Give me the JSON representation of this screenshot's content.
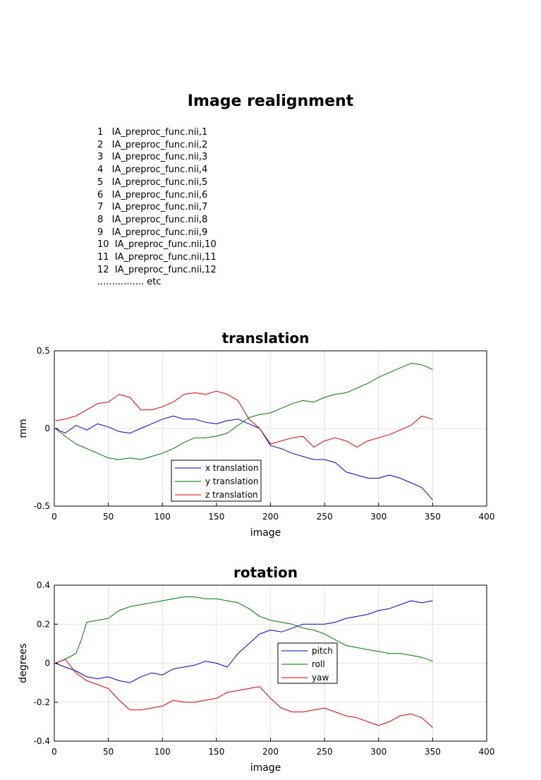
{
  "title": "Image realignment",
  "files": [
    "1   IA_preproc_func.nii,1",
    "2   IA_preproc_func.nii,2",
    "3   IA_preproc_func.nii,3",
    "4   IA_preproc_func.nii,4",
    "5   IA_preproc_func.nii,5",
    "6   IA_preproc_func.nii,6",
    "7   IA_preproc_func.nii,7",
    "8   IA_preproc_func.nii,8",
    "9   IA_preproc_func.nii,9",
    "10  IA_preproc_func.nii,10",
    "11  IA_preproc_func.nii,11",
    "12  IA_preproc_func.nii,12",
    "................ etc"
  ],
  "chart_data": [
    {
      "type": "line",
      "title": "translation",
      "xlabel": "image",
      "ylabel": "mm",
      "xlim": [
        0,
        400
      ],
      "ylim": [
        -0.5,
        0.5
      ],
      "xticks": [
        0,
        50,
        100,
        150,
        200,
        250,
        300,
        350,
        400
      ],
      "yticks": [
        -0.5,
        0,
        0.5
      ],
      "ytick_labels": [
        "-0.5",
        "0",
        "0.5"
      ],
      "grid": true,
      "legend_position": "bottom-left",
      "series": [
        {
          "name": "x translation",
          "color": "#0000cc",
          "x": [
            1,
            10,
            20,
            30,
            40,
            50,
            60,
            70,
            80,
            90,
            100,
            110,
            120,
            130,
            140,
            150,
            160,
            170,
            180,
            190,
            200,
            210,
            220,
            230,
            240,
            250,
            260,
            270,
            280,
            290,
            300,
            310,
            320,
            330,
            340,
            350
          ],
          "y": [
            0,
            -0.03,
            0.02,
            -0.01,
            0.03,
            0.01,
            -0.02,
            -0.03,
            0.0,
            0.03,
            0.06,
            0.08,
            0.06,
            0.06,
            0.04,
            0.03,
            0.05,
            0.06,
            0.03,
            0.0,
            -0.11,
            -0.13,
            -0.16,
            -0.18,
            -0.2,
            -0.2,
            -0.22,
            -0.28,
            -0.3,
            -0.32,
            -0.32,
            -0.3,
            -0.32,
            -0.35,
            -0.38,
            -0.46
          ]
        },
        {
          "name": "y translation",
          "color": "#007700",
          "x": [
            1,
            10,
            20,
            30,
            40,
            50,
            60,
            70,
            80,
            90,
            100,
            110,
            120,
            130,
            140,
            150,
            160,
            170,
            180,
            190,
            200,
            210,
            220,
            230,
            240,
            250,
            260,
            270,
            280,
            290,
            300,
            310,
            320,
            330,
            340,
            350
          ],
          "y": [
            0,
            -0.05,
            -0.1,
            -0.13,
            -0.16,
            -0.19,
            -0.2,
            -0.19,
            -0.2,
            -0.18,
            -0.16,
            -0.13,
            -0.09,
            -0.06,
            -0.06,
            -0.05,
            -0.03,
            0.02,
            0.07,
            0.09,
            0.1,
            0.13,
            0.16,
            0.18,
            0.17,
            0.2,
            0.22,
            0.23,
            0.26,
            0.29,
            0.33,
            0.36,
            0.39,
            0.42,
            0.41,
            0.38
          ]
        },
        {
          "name": "z translation",
          "color": "#dd0000",
          "x": [
            1,
            10,
            20,
            30,
            40,
            50,
            60,
            70,
            80,
            90,
            100,
            110,
            120,
            130,
            140,
            150,
            160,
            170,
            180,
            190,
            200,
            210,
            220,
            230,
            240,
            250,
            260,
            270,
            280,
            290,
            300,
            310,
            320,
            330,
            340,
            350
          ],
          "y": [
            0.05,
            0.06,
            0.08,
            0.12,
            0.16,
            0.17,
            0.22,
            0.2,
            0.12,
            0.12,
            0.14,
            0.17,
            0.22,
            0.23,
            0.22,
            0.24,
            0.22,
            0.18,
            0.06,
            0.0,
            -0.1,
            -0.08,
            -0.06,
            -0.05,
            -0.12,
            -0.08,
            -0.06,
            -0.08,
            -0.12,
            -0.08,
            -0.06,
            -0.04,
            -0.01,
            0.02,
            0.08,
            0.06
          ]
        }
      ]
    },
    {
      "type": "line",
      "title": "rotation",
      "xlabel": "image",
      "ylabel": "degrees",
      "xlim": [
        0,
        400
      ],
      "ylim": [
        -0.4,
        0.4
      ],
      "xticks": [
        0,
        50,
        100,
        150,
        200,
        250,
        300,
        350,
        400
      ],
      "yticks": [
        -0.4,
        -0.2,
        0,
        0.2,
        0.4
      ],
      "ytick_labels": [
        "-0.4",
        "-0.2",
        "0",
        "0.2",
        "0.4"
      ],
      "grid": true,
      "legend_position": "center-right",
      "series": [
        {
          "name": "pitch",
          "color": "#0000cc",
          "x": [
            1,
            10,
            20,
            30,
            40,
            50,
            60,
            70,
            80,
            90,
            100,
            110,
            120,
            130,
            140,
            150,
            160,
            170,
            180,
            190,
            200,
            210,
            220,
            230,
            240,
            250,
            260,
            270,
            280,
            290,
            300,
            310,
            320,
            330,
            340,
            350
          ],
          "y": [
            0,
            -0.02,
            -0.04,
            -0.07,
            -0.08,
            -0.07,
            -0.09,
            -0.1,
            -0.07,
            -0.05,
            -0.06,
            -0.03,
            -0.02,
            -0.01,
            0.01,
            0.0,
            -0.02,
            0.05,
            0.1,
            0.15,
            0.17,
            0.16,
            0.18,
            0.2,
            0.2,
            0.2,
            0.21,
            0.23,
            0.24,
            0.25,
            0.27,
            0.28,
            0.3,
            0.32,
            0.31,
            0.32
          ]
        },
        {
          "name": "roll",
          "color": "#007700",
          "x": [
            1,
            10,
            20,
            25,
            30,
            40,
            50,
            60,
            70,
            80,
            90,
            100,
            110,
            120,
            130,
            140,
            150,
            160,
            170,
            180,
            190,
            200,
            210,
            220,
            230,
            240,
            250,
            260,
            270,
            280,
            290,
            300,
            310,
            320,
            330,
            340,
            350
          ],
          "y": [
            0,
            0.02,
            0.05,
            0.12,
            0.21,
            0.22,
            0.23,
            0.27,
            0.29,
            0.3,
            0.31,
            0.32,
            0.33,
            0.34,
            0.34,
            0.33,
            0.33,
            0.32,
            0.31,
            0.28,
            0.24,
            0.22,
            0.21,
            0.2,
            0.18,
            0.17,
            0.15,
            0.12,
            0.09,
            0.08,
            0.07,
            0.06,
            0.05,
            0.05,
            0.04,
            0.03,
            0.01
          ]
        },
        {
          "name": "yaw",
          "color": "#dd0000",
          "x": [
            1,
            10,
            20,
            30,
            40,
            50,
            60,
            70,
            80,
            90,
            100,
            110,
            120,
            130,
            140,
            150,
            160,
            170,
            180,
            190,
            200,
            210,
            220,
            230,
            240,
            250,
            260,
            270,
            280,
            290,
            300,
            310,
            320,
            330,
            340,
            350
          ],
          "y": [
            0,
            0.02,
            -0.05,
            -0.09,
            -0.11,
            -0.13,
            -0.19,
            -0.24,
            -0.24,
            -0.23,
            -0.22,
            -0.19,
            -0.2,
            -0.2,
            -0.19,
            -0.18,
            -0.15,
            -0.14,
            -0.13,
            -0.12,
            -0.18,
            -0.23,
            -0.25,
            -0.25,
            -0.24,
            -0.23,
            -0.25,
            -0.27,
            -0.28,
            -0.3,
            -0.32,
            -0.3,
            -0.27,
            -0.26,
            -0.28,
            -0.33
          ]
        }
      ]
    }
  ]
}
